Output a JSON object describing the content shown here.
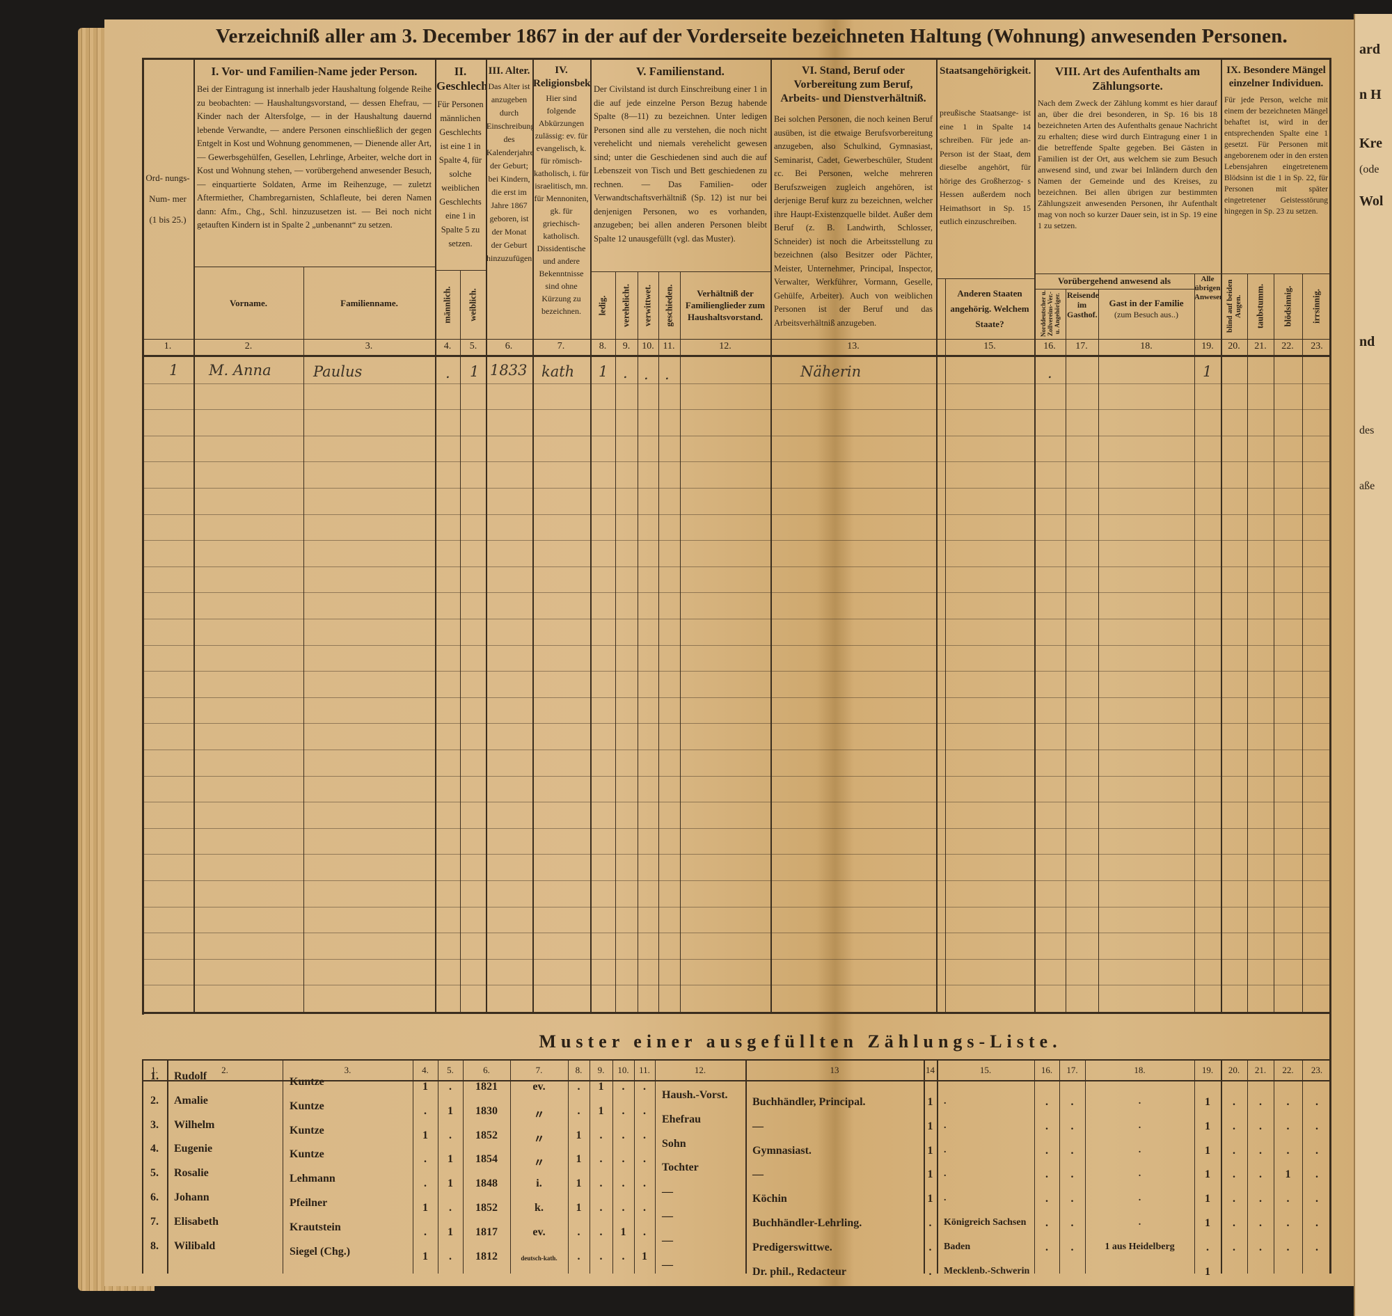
{
  "title": "Verzeichniß aller am 3. December 1867 in der auf der Vorderseite bezeichneten Haltung (Wohnung) anwesenden Personen.",
  "header": {
    "ord": "Ord- nungs- Num- mer (1 bis 25.)",
    "sec1": {
      "title": "I. Vor- und Familien-Name jeder Person.",
      "text": "Bei der Eintragung ist innerhalb jeder Haushaltung folgende Reihe zu beobachten: — Haushaltungsvorstand, — dessen Ehefrau, — Kinder nach der Altersfolge, — in der Haushaltung dauernd lebende Verwandte, — andere Personen einschließlich der gegen Entgelt in Kost und Wohnung genommenen, — Dienende aller Art, — Gewerbsgehülfen, Gesellen, Lehrlinge, Arbeiter, welche dort in Kost und Wohnung stehen, — vorübergehend anwesender Besuch, — einquartierte Soldaten, Arme im Reihenzuge, — zuletzt Aftermiether, Chambregarnisten, Schlafleute, bei deren Namen dann: Afm., Chg., Schl. hinzuzusetzen ist. — Bei noch nicht getauften Kindern ist in Spalte 2 „unbenannt“ zu setzen.",
      "sub_first": "Vorname.",
      "sub_last": "Familienname."
    },
    "sec2": {
      "title": "II. Geschlecht.",
      "text": "Für Personen männlichen Geschlechts ist eine 1 in Spalte 4, für solche weiblichen Geschlechts eine 1 in Spalte 5 zu setzen.",
      "sub_m": "männlich.",
      "sub_w": "weiblich."
    },
    "sec3": {
      "title": "III. Alter.",
      "text": "Das Alter ist anzugeben durch Einschreibung des Kalenderjahres der Geburt; bei Kindern, die erst im Jahre 1867 geboren, ist der Monat der Geburt hinzuzufügen."
    },
    "sec4": {
      "title": "IV. Religionsbekenntniß.",
      "text": "Hier sind folgende Abkürzungen zulässig: ev. für evangelisch, k. für römisch-katholisch, i. für israelitisch, mn. für Mennoniten, gk. für griechisch-katholisch. Dissidentische und andere Bekenntnisse sind ohne Kürzung zu bezeichnen."
    },
    "sec5": {
      "title": "V. Familienstand.",
      "text": "Der Civilstand ist durch Einschreibung einer 1 in die auf jede einzelne Person Bezug habende Spalte (8—11) zu bezeichnen. Unter ledigen Personen sind alle zu verstehen, die noch nicht verehelicht und niemals verehelicht gewesen sind; unter die Geschiedenen sind auch die auf Lebenszeit von Tisch und Bett geschiedenen zu rechnen. — Das Familien- oder Verwandtschaftsverhältniß (Sp. 12) ist nur bei denjenigen Personen, wo es vorhanden, anzugeben; bei allen anderen Personen bleibt Spalte 12 unausgefüllt (vgl. das Muster).",
      "subs": [
        "ledig.",
        "verehelicht.",
        "verwittwet.",
        "geschieden."
      ],
      "sub12": "Verhältniß der Familienglieder zum Haushaltsvorstand."
    },
    "sec6": {
      "title": "VI. Stand, Beruf oder Vorbereitung zum Beruf, Arbeits- und Dienstverhältniß.",
      "text": "Bei solchen Personen, die noch keinen Beruf ausüben, ist die etwaige Berufsvorbereitung anzugeben, also Schulkind, Gymnasiast, Seminarist, Cadet, Gewerbeschüler, Student ɛc. Bei Personen, welche mehreren Berufszweigen zugleich angehören, ist derjenige Beruf kurz zu bezeichnen, welcher ihre Haupt-Existenzquelle bildet. Außer dem Beruf (z. B. Landwirth, Schlosser, Schneider) ist noch die Arbeitsstellung zu bezeichnen (also Besitzer oder Pächter, Meister, Unternehmer, Principal, Inspector, Verwalter, Werkführer, Vormann, Geselle, Gehülfe, Arbeiter). Auch von weiblichen Personen ist der Beruf und das Arbeitsverhältniß anzugeben."
    },
    "sec7": {
      "title": "Staatsangehörigkeit.",
      "text": "preußische Staatsange- ist eine 1 in Spalte 14 schreiben. Für jede an- Person ist der Staat, dem dieselbe angehört, für hörige des Großherzog- s Hessen außerdem noch Heimathsort in Sp. 15 eutlich einzuschreiben.",
      "sub15": "Anderen Staaten angehörig. Welchem Staate?"
    },
    "sec8": {
      "title": "VIII. Art des Aufenthalts am Zählungsorte.",
      "text": "Nach dem Zweck der Zählung kommt es hier darauf an, über die drei besonderen, in Sp. 16 bis 18 bezeichneten Arten des Aufenthalts genaue Nachricht zu erhalten; diese wird durch Eintragung einer 1 in die betreffende Spalte gegeben. Bei Gästen in Familien ist der Ort, aus welchem sie zum Besuch anwesend sind, und zwar bei Inländern durch den Namen der Gemeinde und des Kreises, zu bezeichnen. Bei allen übrigen zur bestimmten Zählungszeit anwesenden Personen, ihr Aufenthalt mag von noch so kurzer Dauer sein, ist in Sp. 19 eine 1 zu setzen.",
      "group": "Vorübergehend anwesend als",
      "sub16": "Norddeutscher u. Zollvereins-Ver.- u. Angehöriger.",
      "sub17": "Reisender im Gasthof.",
      "sub18": "Gast in der Familie",
      "sub18b": "(zum Besuch aus..)",
      "sub19": "Alle übrigen Anwesenden."
    },
    "sec9": {
      "title": "IX. Besondere Mängel einzelner Individuen.",
      "text": "Für jede Person, welche mit einem der bezeichneten Mängel behaftet ist, wird in der entsprechenden Spalte eine 1 gesetzt. Für Personen mit angeborenem oder in den ersten Lebensjahren eingetretenem Blödsinn ist die 1 in Sp. 22, für Personen mit später eingetretener Geistesstörung hingegen in Sp. 23 zu setzen.",
      "subs": [
        "blind auf beiden Augen.",
        "taubstumm.",
        "blödsinnig.",
        "irrsinnig."
      ]
    },
    "col_numbers": [
      "1.",
      "2.",
      "3.",
      "4.",
      "5.",
      "6.",
      "7.",
      "8.",
      "9.",
      "10.",
      "11.",
      "12.",
      "13.",
      "15.",
      "16.",
      "17.",
      "18.",
      "19.",
      "20.",
      "21.",
      "22.",
      "23."
    ]
  },
  "entry": {
    "number": "1",
    "first_name": "M. Anna",
    "last_name": "Paulus",
    "male": ".",
    "female": "1",
    "birth_year": "1833",
    "religion": "kath",
    "single": "1",
    "married": ".",
    "widowed": ".",
    "divorced": ".",
    "occupation": "Näherin",
    "col16": ".",
    "col19": "1"
  },
  "example": {
    "title": "Muster einer ausgefüllten Zählungs-Liste.",
    "col_numbers": [
      "1.",
      "2.",
      "3.",
      "4.",
      "5.",
      "6.",
      "7.",
      "8.",
      "9.",
      "10.",
      "11.",
      "12.",
      "13",
      "14",
      "15.",
      "16.",
      "17.",
      "18.",
      "19.",
      "20.",
      "21.",
      "22.",
      "23."
    ],
    "rows": [
      [
        "1.",
        "Rudolf",
        "Kuntze",
        "1",
        ".",
        "1821",
        "ev.",
        ".",
        "1",
        ".",
        ".",
        "Haush.-Vorst.",
        "Buchhändler, Principal.",
        "1",
        ".",
        ".",
        ".",
        ".",
        "1",
        ".",
        ".",
        ".",
        "."
      ],
      [
        "2.",
        "Amalie",
        "Kuntze",
        ".",
        "1",
        "1830",
        "〃",
        ".",
        "1",
        ".",
        ".",
        "Ehefrau",
        "—",
        "1",
        ".",
        ".",
        ".",
        ".",
        "1",
        ".",
        ".",
        ".",
        "."
      ],
      [
        "3.",
        "Wilhelm",
        "Kuntze",
        "1",
        ".",
        "1852",
        "〃",
        "1",
        ".",
        ".",
        ".",
        "Sohn",
        "Gymnasiast.",
        "1",
        ".",
        ".",
        ".",
        ".",
        "1",
        ".",
        ".",
        ".",
        "."
      ],
      [
        "4.",
        "Eugenie",
        "Kuntze",
        ".",
        "1",
        "1854",
        "〃",
        "1",
        ".",
        ".",
        ".",
        "Tochter",
        "—",
        "1",
        ".",
        ".",
        ".",
        ".",
        "1",
        ".",
        ".",
        "1",
        "."
      ],
      [
        "5.",
        "Rosalie",
        "Lehmann",
        ".",
        "1",
        "1848",
        "i.",
        "1",
        ".",
        ".",
        ".",
        "—",
        "Köchin",
        "1",
        ".",
        ".",
        ".",
        ".",
        "1",
        ".",
        ".",
        ".",
        "."
      ],
      [
        "6.",
        "Johann",
        "Pfeilner",
        "1",
        ".",
        "1852",
        "k.",
        "1",
        ".",
        ".",
        ".",
        "—",
        "Buchhändler-Lehrling.",
        ".",
        "Königreich Sachsen",
        ".",
        ".",
        ".",
        "1",
        ".",
        ".",
        ".",
        "."
      ],
      [
        "7.",
        "Elisabeth",
        "Krautstein",
        ".",
        "1",
        "1817",
        "ev.",
        ".",
        ".",
        "1",
        ".",
        "—",
        "Predigerswittwe.",
        ".",
        "Baden",
        ".",
        ".",
        "1 aus Heidelberg",
        ".",
        ".",
        ".",
        ".",
        "."
      ],
      [
        "8.",
        "Wilibald",
        "Siegel (Chg.)",
        "1",
        ".",
        "1812",
        "deutsch-kath.",
        ".",
        ".",
        ".",
        "1",
        "—",
        "Dr. phil., Redacteur",
        ".",
        "Mecklenb.-Schwerin",
        "",
        "",
        "",
        "1",
        "",
        "",
        "",
        ""
      ]
    ]
  },
  "next_page_fragments": [
    "ard",
    "n H",
    "Kre",
    "(ode",
    "Wol",
    "nd",
    "des",
    "aße"
  ],
  "colors": {
    "paper": "#d8b785",
    "ink": "#2b2116",
    "background": "#1c1a18"
  }
}
